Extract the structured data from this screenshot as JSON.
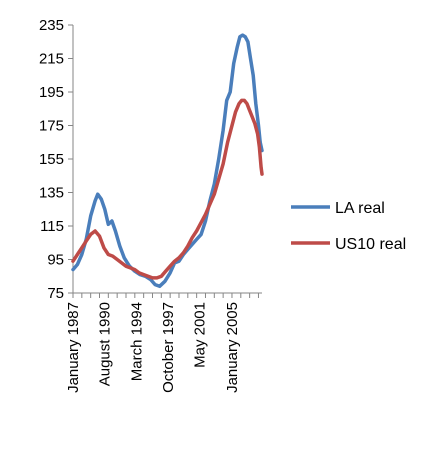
{
  "chart_data": {
    "type": "line",
    "ylim": [
      75,
      235
    ],
    "y_ticks": [
      75,
      95,
      115,
      135,
      155,
      175,
      195,
      215,
      235
    ],
    "x_tick_labels": [
      "January 1987",
      "August 1990",
      "March 1994",
      "October 1997",
      "May 2001",
      "January 2005"
    ],
    "x_ticks": [
      1987.0,
      1990.58,
      1994.17,
      1997.75,
      2001.33,
      2005.0
    ],
    "xlim": [
      1987.0,
      2008.4
    ],
    "grid": false,
    "legend_position": "right",
    "series": [
      {
        "name": "LA real",
        "color": "#4a7ebb",
        "x": [
          1987.0,
          1987.5,
          1988.0,
          1988.5,
          1989.0,
          1989.5,
          1989.8,
          1990.2,
          1990.6,
          1991.0,
          1991.4,
          1991.8,
          1992.3,
          1992.8,
          1993.4,
          1994.0,
          1994.6,
          1995.2,
          1995.8,
          1996.3,
          1996.8,
          1997.4,
          1998.0,
          1998.5,
          1999.0,
          1999.5,
          2000.0,
          2000.5,
          2001.0,
          2001.5,
          2002.0,
          2002.5,
          2003.0,
          2003.5,
          2004.0,
          2004.4,
          2004.8,
          2005.2,
          2005.6,
          2005.9,
          2006.2,
          2006.5,
          2006.8,
          2007.1,
          2007.4,
          2007.7,
          2008.0,
          2008.2,
          2008.4
        ],
        "y": [
          89,
          92,
          98,
          107,
          121,
          130,
          134,
          131,
          125,
          116,
          118,
          112,
          103,
          96,
          91,
          88,
          86,
          85,
          83,
          80,
          79,
          82,
          87,
          93,
          94,
          98,
          101,
          104,
          107,
          110,
          118,
          130,
          140,
          155,
          172,
          190,
          195,
          212,
          222,
          228,
          229,
          228,
          225,
          215,
          205,
          188,
          175,
          165,
          160
        ]
      },
      {
        "name": "US10 real",
        "color": "#be4b48",
        "x": [
          1987.0,
          1987.5,
          1988.0,
          1988.5,
          1989.0,
          1989.5,
          1990.0,
          1990.5,
          1991.0,
          1991.5,
          1992.0,
          1992.5,
          1993.0,
          1993.5,
          1994.0,
          1994.5,
          1995.0,
          1995.5,
          1996.0,
          1996.5,
          1997.0,
          1997.5,
          1998.0,
          1998.5,
          1999.0,
          1999.5,
          2000.0,
          2000.5,
          2001.0,
          2001.5,
          2002.0,
          2002.5,
          2003.0,
          2003.5,
          2004.0,
          2004.5,
          2005.0,
          2005.4,
          2005.8,
          2006.1,
          2006.4,
          2006.7,
          2007.0,
          2007.3,
          2007.6,
          2007.9,
          2008.1,
          2008.3,
          2008.4
        ],
        "y": [
          94,
          98,
          102,
          106,
          110,
          112,
          109,
          102,
          98,
          97,
          95,
          93,
          91,
          90,
          89,
          87,
          86,
          85,
          84,
          84,
          85,
          88,
          91,
          94,
          96,
          99,
          103,
          108,
          112,
          117,
          122,
          128,
          134,
          143,
          152,
          165,
          175,
          183,
          188,
          190,
          190,
          188,
          184,
          180,
          176,
          170,
          162,
          150,
          146
        ]
      }
    ]
  }
}
